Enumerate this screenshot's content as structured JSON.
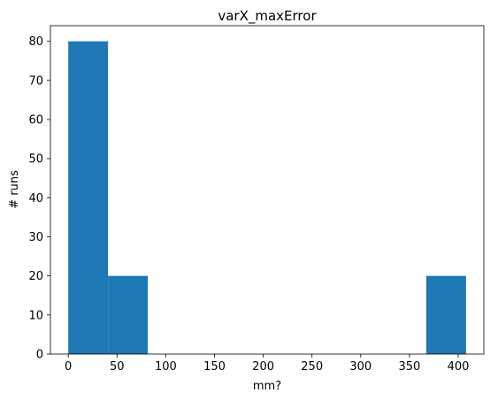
{
  "chart_data": {
    "type": "bar",
    "title": "varX_maxError",
    "xlabel": "mm?",
    "ylabel": "# runs",
    "bins": [
      {
        "x0": 0,
        "x1": 40.8,
        "count": 80
      },
      {
        "x0": 40.8,
        "x1": 81.6,
        "count": 20
      },
      {
        "x0": 81.6,
        "x1": 122.4,
        "count": 0
      },
      {
        "x0": 122.4,
        "x1": 163.2,
        "count": 0
      },
      {
        "x0": 163.2,
        "x1": 204.0,
        "count": 0
      },
      {
        "x0": 204.0,
        "x1": 244.8,
        "count": 0
      },
      {
        "x0": 244.8,
        "x1": 285.6,
        "count": 0
      },
      {
        "x0": 285.6,
        "x1": 326.4,
        "count": 0
      },
      {
        "x0": 326.4,
        "x1": 367.2,
        "count": 0
      },
      {
        "x0": 367.2,
        "x1": 408.0,
        "count": 20
      }
    ],
    "xlim": [
      -18.3,
      426.3
    ],
    "ylim": [
      0,
      84
    ],
    "xticks": [
      "0",
      "50",
      "100",
      "150",
      "200",
      "250",
      "300",
      "350",
      "400"
    ],
    "yticks": [
      "0",
      "10",
      "20",
      "30",
      "40",
      "50",
      "60",
      "70",
      "80"
    ],
    "bar_color": "#1f77b4",
    "grid": false,
    "legend": "none"
  }
}
